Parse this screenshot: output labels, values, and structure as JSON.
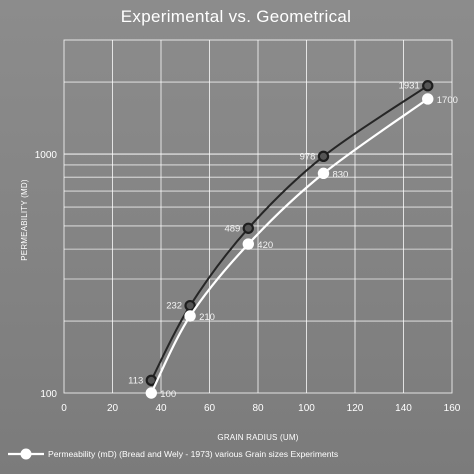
{
  "chart_data": {
    "type": "line",
    "title": "Experimental vs. Geometrical",
    "xlabel": "GRAIN RADIUS (UM)",
    "ylabel": "PERMEABILITY (MD)",
    "xlim": [
      0,
      160
    ],
    "ylim": [
      100,
      3000
    ],
    "y_scale": "log",
    "grid": true,
    "legend_position": "bottom-left",
    "x_ticks": [
      "0",
      "20",
      "40",
      "60",
      "80",
      "100",
      "120",
      "140",
      "160"
    ],
    "y_ticks": [
      "100",
      "1000"
    ],
    "series": [
      {
        "name": "",
        "color": "#262626",
        "marker": "dark-circle",
        "x": [
          36,
          52,
          76,
          107,
          150
        ],
        "y": [
          113,
          232,
          489,
          978,
          1931
        ],
        "labels": [
          "113",
          "232",
          "489",
          "978",
          "1931"
        ]
      },
      {
        "name": "Permeability (mD) (Bread and Wely - 1973) various Grain sizes Experiments",
        "color": "#ffffff",
        "marker": "white-circle",
        "x": [
          36,
          52,
          76,
          107,
          150
        ],
        "y": [
          100,
          210,
          420,
          830,
          1700
        ],
        "labels": [
          "100",
          "210",
          "420",
          "830",
          "1700"
        ]
      }
    ]
  },
  "colors": {
    "background": "#838383",
    "grid": "#ffffff",
    "dark_series": "#262626",
    "light_series": "#ffffff"
  }
}
